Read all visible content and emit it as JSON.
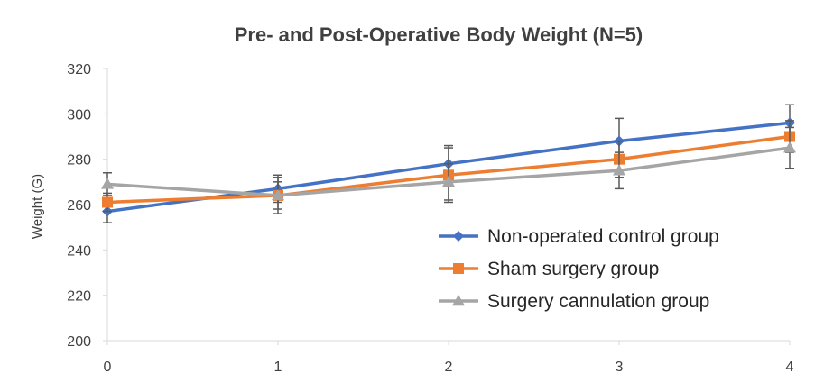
{
  "chart_data": {
    "type": "line",
    "title": "Pre- and Post-Operative Body Weight (N=5)",
    "xlabel": "",
    "ylabel": "Weight (G)",
    "x": [
      0,
      1,
      2,
      3,
      4
    ],
    "ylim": [
      200,
      320
    ],
    "yticks": [
      200,
      220,
      240,
      260,
      280,
      300,
      320
    ],
    "xticks": [
      0,
      1,
      2,
      3,
      4
    ],
    "grid": false,
    "legend_position": "right",
    "series": [
      {
        "name": "Non-operated control group",
        "color": "#4472C4",
        "marker": "diamond",
        "values": [
          257,
          267,
          278,
          288,
          296
        ],
        "errors": [
          5,
          6,
          8,
          10,
          8
        ]
      },
      {
        "name": "Sham surgery group",
        "color": "#ED7D31",
        "marker": "square",
        "values": [
          261,
          264,
          273,
          280,
          290
        ],
        "errors": [
          4,
          8,
          12,
          8,
          7
        ]
      },
      {
        "name": "Surgery cannulation group",
        "color": "#A5A5A5",
        "marker": "triangle",
        "values": [
          269,
          264,
          270,
          275,
          285
        ],
        "errors": [
          5,
          6,
          8,
          8,
          9
        ]
      }
    ]
  }
}
